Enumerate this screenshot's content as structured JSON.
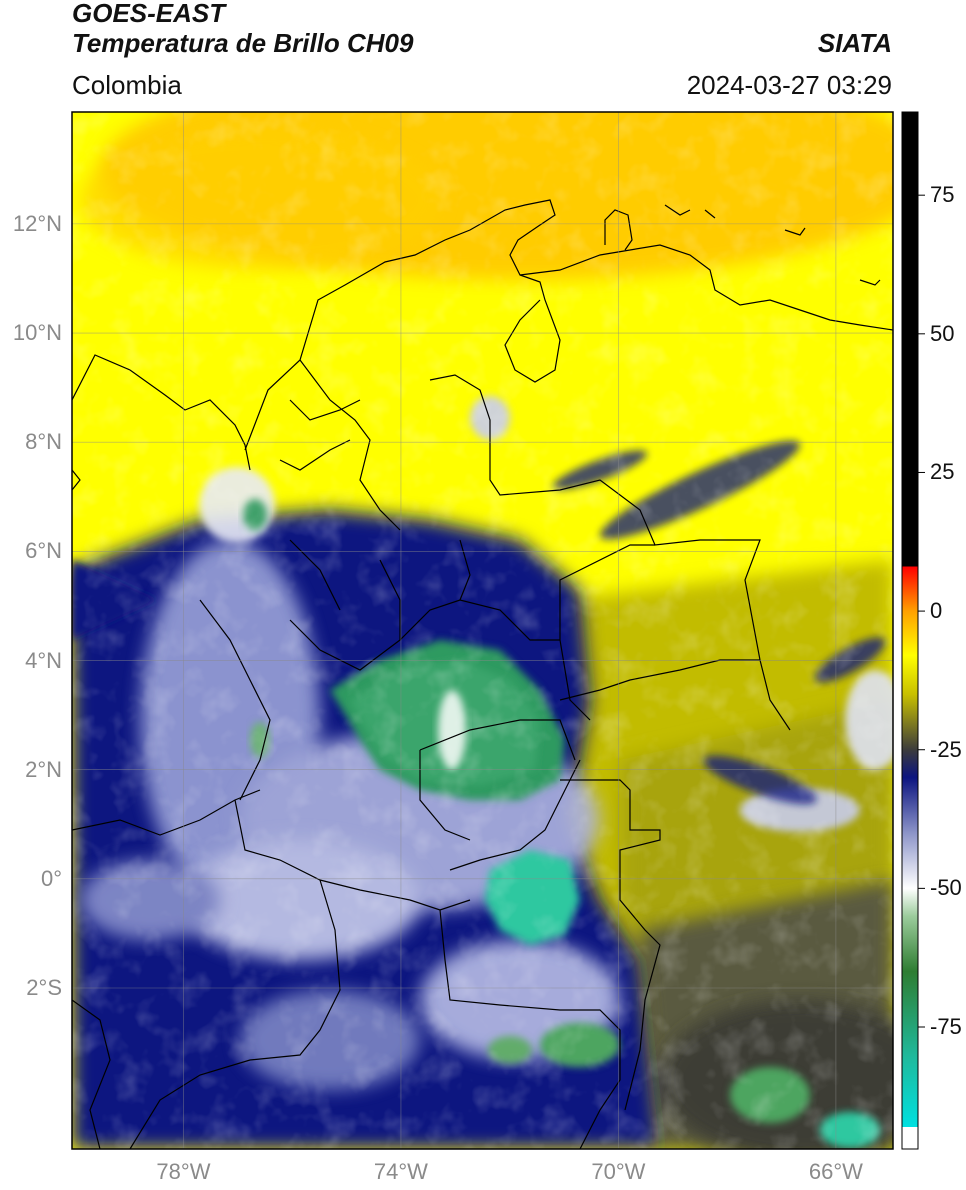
{
  "header": {
    "satellite": "GOES-EAST",
    "product": "Temperatura de Brillo CH09",
    "region": "Colombia",
    "brand": "SIATA",
    "timestamp": "2024-03-27 03:29"
  },
  "axes": {
    "lat_labels": [
      {
        "text": "12°N",
        "value": 12
      },
      {
        "text": "10°N",
        "value": 10
      },
      {
        "text": "8°N",
        "value": 8
      },
      {
        "text": "6°N",
        "value": 6
      },
      {
        "text": "4°N",
        "value": 4
      },
      {
        "text": "2°N",
        "value": 2
      },
      {
        "text": "0°",
        "value": 0
      },
      {
        "text": "2°S",
        "value": -2
      }
    ],
    "lon_labels": [
      {
        "text": "78°W",
        "value": -78
      },
      {
        "text": "74°W",
        "value": -74
      },
      {
        "text": "70°W",
        "value": -70
      },
      {
        "text": "66°W",
        "value": -66
      }
    ],
    "lat_range": [
      -4.95,
      14.05
    ],
    "lon_range": [
      -80.05,
      -64.95
    ],
    "grid": true
  },
  "colorbar": {
    "range": [
      -97,
      90
    ],
    "ticks": [
      75,
      50,
      25,
      0,
      -25,
      -50,
      -75
    ],
    "stops": [
      {
        "v": -97,
        "c": "#ffffff"
      },
      {
        "v": -93,
        "c": "#ffffff"
      },
      {
        "v": -93,
        "c": "#00e0e0"
      },
      {
        "v": -80,
        "c": "#20b89a"
      },
      {
        "v": -65,
        "c": "#2e7d32"
      },
      {
        "v": -55,
        "c": "#9ccc9c"
      },
      {
        "v": -50,
        "c": "#ffffff"
      },
      {
        "v": -40,
        "c": "#8c94c8"
      },
      {
        "v": -30,
        "c": "#0c1580"
      },
      {
        "v": -25,
        "c": "#3c3c3c"
      },
      {
        "v": -15,
        "c": "#c8c000"
      },
      {
        "v": -8,
        "c": "#ffff00"
      },
      {
        "v": 0,
        "c": "#ffa000"
      },
      {
        "v": 8,
        "c": "#ff0000"
      },
      {
        "v": 8,
        "c": "#000000"
      },
      {
        "v": 90,
        "c": "#000000"
      }
    ],
    "palette": {
      "yellow": "#ffff00",
      "orange": "#ffc000",
      "navy": "#0c1580",
      "olive": "#b8b400",
      "gray": "#4a4a3c",
      "green": "#2e9a60",
      "teal": "#2ec8a0"
    }
  }
}
